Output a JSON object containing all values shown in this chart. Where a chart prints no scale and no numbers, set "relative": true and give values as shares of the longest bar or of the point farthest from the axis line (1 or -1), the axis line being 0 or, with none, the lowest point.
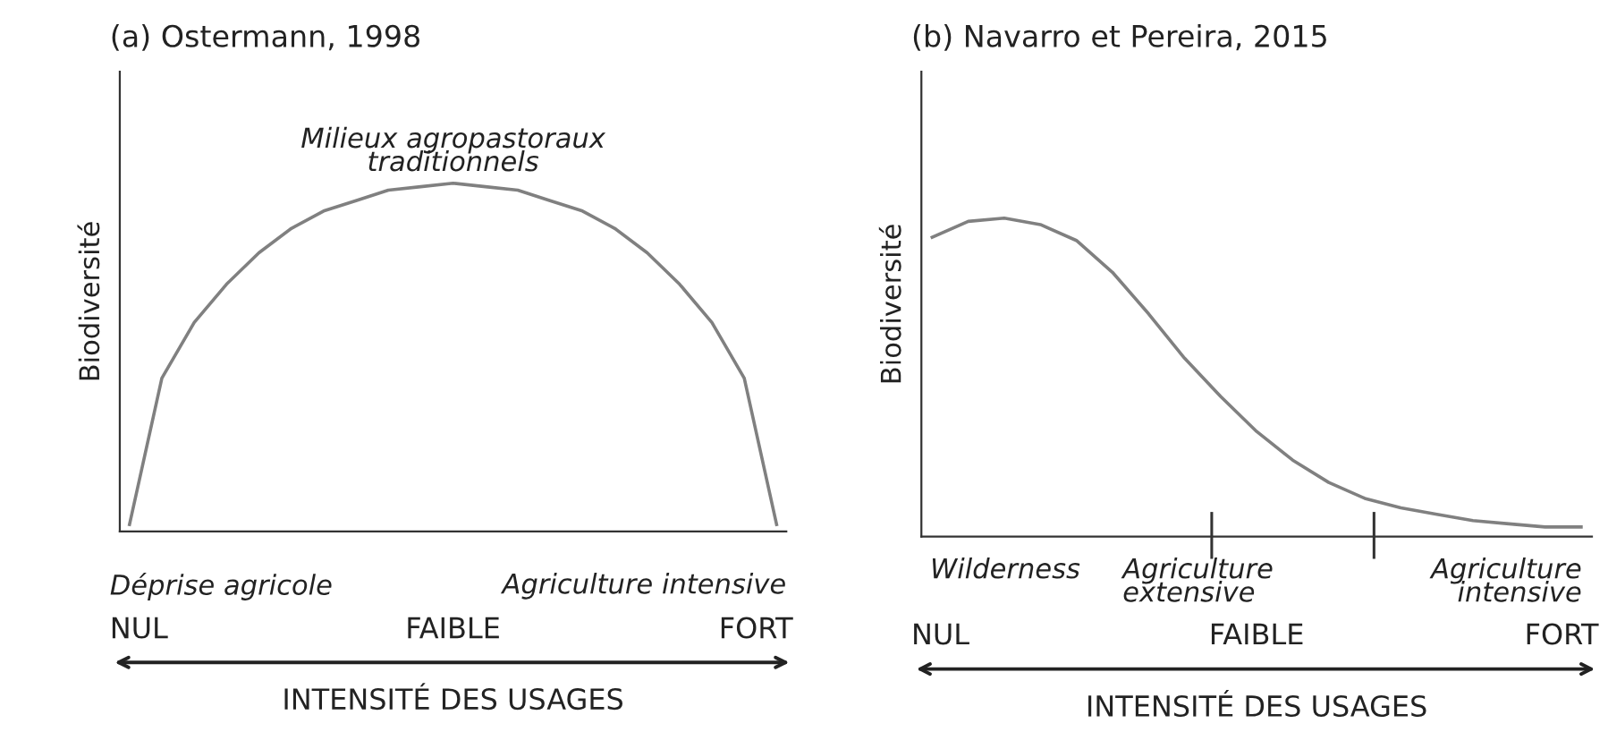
{
  "chart_data": [
    {
      "type": "line",
      "title": "(a) Ostermann, 1998",
      "ylabel": "Biodiversité",
      "xlabel": "INTENSITÉ DES USAGES",
      "relative": true,
      "color": "#808080",
      "categories": [
        null,
        null,
        null,
        null,
        null,
        null,
        null,
        null,
        null,
        null,
        null,
        null,
        null,
        null,
        null,
        null,
        null,
        null,
        null,
        null,
        null
      ],
      "values": [
        0.02,
        0.44,
        0.6,
        0.71,
        0.8,
        0.87,
        0.92,
        0.95,
        0.98,
        0.99,
        1.0,
        0.99,
        0.98,
        0.95,
        0.92,
        0.87,
        0.8,
        0.71,
        0.6,
        0.44,
        0.02
      ],
      "annotations": [
        "Milieux agropastoraux\ntraditionnels",
        "Déprise agricole",
        "Agriculture intensive",
        "NUL",
        "FAIBLE",
        "FORT"
      ]
    },
    {
      "type": "line",
      "title": "(b) Navarro et Pereira, 2015",
      "ylabel": "Biodiversité",
      "xlabel": "INTENSITÉ DES USAGES",
      "relative": true,
      "color": "#808080",
      "categories": [
        null,
        null,
        null,
        null,
        null,
        null,
        null,
        null,
        null,
        null,
        null,
        null,
        null,
        null,
        null,
        null,
        null,
        null,
        null
      ],
      "values": [
        0.94,
        0.99,
        1.0,
        0.98,
        0.93,
        0.83,
        0.7,
        0.56,
        0.44,
        0.33,
        0.24,
        0.17,
        0.12,
        0.09,
        0.07,
        0.05,
        0.04,
        0.03,
        0.03
      ],
      "annotations": [
        "Wilderness",
        "Agriculture\nextensive",
        "Agriculture\nintensive",
        "NUL",
        "FAIBLE",
        "FORT"
      ]
    }
  ]
}
